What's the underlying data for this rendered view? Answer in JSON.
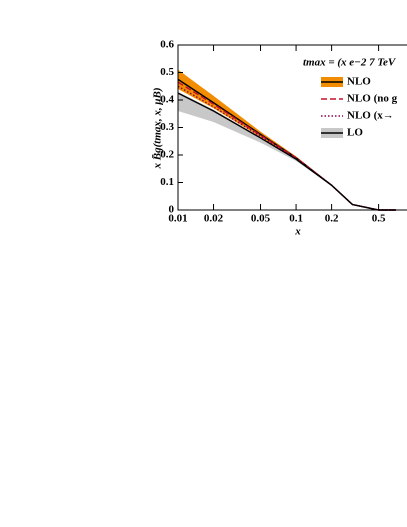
{
  "chart_data": {
    "type": "line",
    "log_x": true,
    "x_label": "x",
    "y_label": "x B̄g(tmax, x, μB)",
    "legend_title": "tmax = (x e−2 7 TeV",
    "legend": "upper right",
    "x": [
      0.01,
      0.02,
      0.05,
      0.1,
      0.2,
      0.3,
      0.5,
      0.7
    ],
    "xlim": [
      0.01,
      0.87
    ],
    "xticks": [
      0.01,
      0.02,
      0.05,
      0.1,
      0.2,
      0.5
    ],
    "ylim": [
      0,
      0.6
    ],
    "yticks": [
      0,
      0.1,
      0.2,
      0.3,
      0.4,
      0.5,
      0.6
    ],
    "series": [
      {
        "name": "NLO",
        "color": "#000000",
        "band_color": "#f28c00",
        "dash": "solid",
        "values": [
          0.475,
          0.39,
          0.275,
          0.19,
          0.09,
          0.02,
          0,
          0
        ],
        "band_low": [
          0.44,
          0.37,
          0.265,
          0.185,
          0.088,
          0.02,
          0,
          0
        ],
        "band_high": [
          0.51,
          0.415,
          0.285,
          0.195,
          0.092,
          0.02,
          0,
          0
        ]
      },
      {
        "name": "NLO (no g",
        "color": "#c8102e",
        "dash": "dashed",
        "values": [
          0.465,
          0.385,
          0.272,
          0.19,
          0.09,
          0.02,
          0,
          0
        ]
      },
      {
        "name": "NLO (x→",
        "color": "#8b0050",
        "dash": "dotted",
        "values": [
          0.45,
          0.375,
          0.268,
          0.188,
          0.09,
          0.02,
          0,
          0
        ]
      },
      {
        "name": "LO",
        "color": "#000000",
        "band_color": "#c8c8c8",
        "dash": "solid",
        "values": [
          0.425,
          0.36,
          0.262,
          0.185,
          0.09,
          0.02,
          0,
          0
        ],
        "band_low": [
          0.36,
          0.32,
          0.245,
          0.178,
          0.088,
          0.02,
          0,
          0
        ],
        "band_high": [
          0.43,
          0.365,
          0.265,
          0.187,
          0.09,
          0.02,
          0,
          0
        ]
      }
    ]
  }
}
